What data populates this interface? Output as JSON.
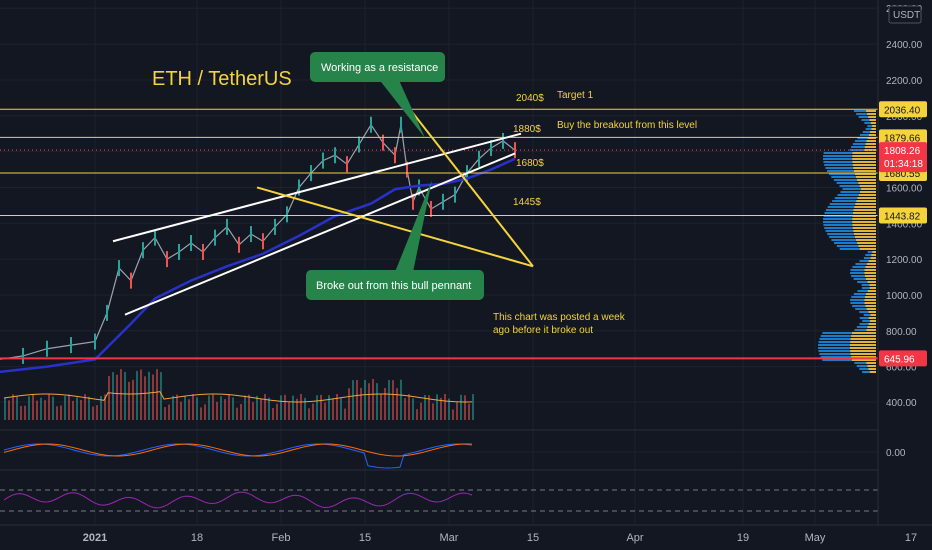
{
  "chart_data": {
    "type": "line",
    "title": "ETH / TetherUS",
    "currency": "USDT",
    "price_axis": {
      "min": 0,
      "max": 2600,
      "ticks": [
        "2600.00",
        "2400.00",
        "2200.00",
        "2000.00",
        "1800.00",
        "1600.00",
        "1400.00",
        "1200.00",
        "1000.00",
        "800.00",
        "600.00",
        "400.00",
        "0.00"
      ]
    },
    "time_axis": {
      "labels": [
        {
          "text": "2021",
          "day": 0
        },
        {
          "text": "18",
          "day": 17
        },
        {
          "text": "Feb",
          "day": 31
        },
        {
          "text": "15",
          "day": 45
        },
        {
          "text": "Mar",
          "day": 59
        },
        {
          "text": "15",
          "day": 73
        },
        {
          "text": "Apr",
          "day": 90
        },
        {
          "text": "19",
          "day": 108
        },
        {
          "text": "May",
          "day": 120
        },
        {
          "text": "17",
          "day": 136
        }
      ]
    },
    "horizontal_levels": [
      {
        "label": "2040$",
        "price": 2036.4,
        "badge": "2036.40",
        "color": "#f5d33b"
      },
      {
        "label": "1880$",
        "price": 1879.66,
        "badge": "1879.66",
        "color": "#f5d33b"
      },
      {
        "label": "1680$",
        "price": 1680.55,
        "badge": "1680.55",
        "color": "#f5d33b"
      },
      {
        "label": "1445$",
        "price": 1443.82,
        "badge": "1443.82",
        "color": "#f5d33b"
      },
      {
        "label": "",
        "price": 645.96,
        "badge": "645.96",
        "color": "#f23645"
      }
    ],
    "current_price": {
      "value": "1808.26",
      "countdown": "01:34:18"
    },
    "annotations": {
      "target": "Target 1",
      "breakout_level": "Buy the breakout from this level",
      "posted_note_line1": "This chart was posted a week",
      "posted_note_line2": "ago before it broke out",
      "resistance_callout": "Working as a resistance",
      "pennant_callout": "Broke out from this bull pennant"
    },
    "series": [
      {
        "kind": "price",
        "x": [
          -16,
          -12,
          -8,
          -4,
          0,
          2,
          4,
          6,
          8,
          10,
          12,
          14,
          16,
          18,
          20,
          22,
          24,
          26,
          28,
          30,
          32,
          34,
          36,
          38,
          40,
          42,
          44,
          46,
          48,
          50,
          51,
          52,
          53,
          54,
          56,
          58,
          60,
          62,
          64,
          66,
          68,
          70
        ],
        "y": [
          640,
          660,
          700,
          720,
          740,
          900,
          1150,
          1080,
          1250,
          1320,
          1200,
          1240,
          1290,
          1240,
          1320,
          1380,
          1280,
          1340,
          1300,
          1380,
          1450,
          1600,
          1680,
          1750,
          1780,
          1730,
          1840,
          1950,
          1850,
          1780,
          1950,
          1700,
          1520,
          1600,
          1480,
          1520,
          1560,
          1680,
          1760,
          1820,
          1860,
          1808
        ]
      },
      {
        "kind": "moving_average",
        "x": [
          -16,
          -8,
          0,
          6,
          10,
          16,
          22,
          28,
          34,
          40,
          46,
          50,
          54,
          58,
          62,
          66,
          70
        ],
        "y": [
          570,
          600,
          640,
          840,
          980,
          1080,
          1160,
          1230,
          1330,
          1440,
          1510,
          1590,
          1610,
          1620,
          1650,
          1700,
          1760
        ]
      }
    ],
    "trendlines": [
      {
        "name": "channel-upper",
        "x1": 3,
        "y1": 1300,
        "x2": 71,
        "y2": 1900
      },
      {
        "name": "channel-lower",
        "x1": 5,
        "y1": 890,
        "x2": 70,
        "y2": 1790
      },
      {
        "name": "pennant-top",
        "x1": 51,
        "y1": 2100,
        "x2": 73,
        "y2": 1160
      },
      {
        "name": "pennant-bottom",
        "x1": 27,
        "y1": 1600,
        "x2": 73,
        "y2": 1160
      }
    ],
    "grid": true,
    "legend": "none"
  }
}
